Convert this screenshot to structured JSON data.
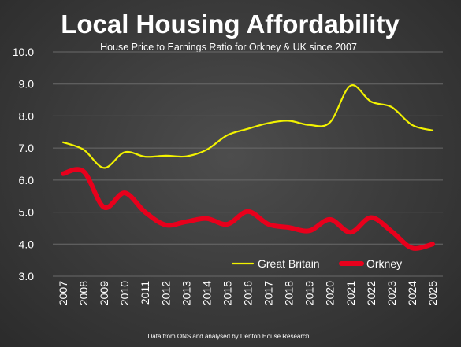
{
  "chart_data": {
    "type": "line",
    "title": "Local Housing Affordability",
    "subtitle": "House Price to Earnings Ratio for Orkney & UK since 2007",
    "source": "Data from ONS and analysed by Denton House Research",
    "x": [
      "2007",
      "2008",
      "2009",
      "2010",
      "2011",
      "2012",
      "2013",
      "2014",
      "2015",
      "2016",
      "2017",
      "2018",
      "2019",
      "2020",
      "2021",
      "2022",
      "2023",
      "2024",
      "2025"
    ],
    "ylim": [
      3.0,
      10.0
    ],
    "yticks": [
      "3.0",
      "4.0",
      "5.0",
      "6.0",
      "7.0",
      "8.0",
      "9.0",
      "10.0"
    ],
    "grid": true,
    "legend_position": "bottom-right",
    "series": [
      {
        "name": "Great Britain",
        "color": "#f2f200",
        "values": [
          7.18,
          6.95,
          6.38,
          6.87,
          6.73,
          6.76,
          6.74,
          6.95,
          7.4,
          7.6,
          7.78,
          7.85,
          7.72,
          7.8,
          8.95,
          8.45,
          8.28,
          7.72,
          7.55
        ]
      },
      {
        "name": "Orkney",
        "color": "#e8001c",
        "values": [
          6.2,
          6.27,
          5.15,
          5.6,
          5.0,
          4.6,
          4.7,
          4.8,
          4.62,
          5.02,
          4.62,
          4.52,
          4.42,
          4.77,
          4.37,
          4.83,
          4.4,
          3.88,
          4.0
        ]
      }
    ]
  }
}
